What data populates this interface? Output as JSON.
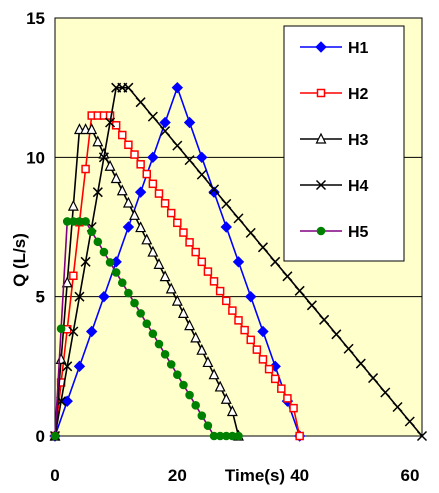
{
  "chart_data": {
    "type": "line",
    "title": "",
    "xlabel": "Time(s)",
    "ylabel": "Q (L/s)",
    "xlim": [
      0,
      60
    ],
    "ylim": [
      0,
      15
    ],
    "x_ticks": [
      "0",
      "20",
      "40",
      "60"
    ],
    "y_ticks": [
      "0",
      "5",
      "10",
      "15"
    ],
    "grid": "horizontal",
    "legend_position": "top-right",
    "plot_background": "#ffffcc",
    "series": [
      {
        "name": "H1",
        "color": "#0000ff",
        "marker": "diamond",
        "x": [
          0,
          2,
          4,
          6,
          8,
          10,
          12,
          14,
          16,
          18,
          20,
          22,
          24,
          26,
          28,
          30,
          32,
          34,
          36,
          38,
          40
        ],
        "y": [
          0,
          1.25,
          2.5,
          3.75,
          5.0,
          6.25,
          7.5,
          8.75,
          10.0,
          11.25,
          12.5,
          11.25,
          10.0,
          8.75,
          7.5,
          6.25,
          5.0,
          3.75,
          2.5,
          1.25,
          0
        ]
      },
      {
        "name": "H2",
        "color": "#ff0000",
        "marker": "square",
        "x": [
          0,
          1,
          2,
          3,
          4,
          5,
          6,
          7,
          8,
          9,
          10,
          11,
          12,
          13,
          14,
          15,
          16,
          17,
          18,
          19,
          20,
          21,
          22,
          23,
          24,
          25,
          26,
          27,
          28,
          29,
          30,
          31,
          32,
          33,
          34,
          35,
          36,
          37,
          38,
          39,
          40
        ],
        "y": [
          0,
          1.92,
          3.83,
          5.75,
          7.67,
          9.58,
          11.5,
          11.5,
          11.5,
          11.5,
          11.15,
          10.8,
          10.45,
          10.1,
          9.75,
          9.4,
          9.05,
          8.7,
          8.35,
          8.0,
          7.65,
          7.3,
          6.95,
          6.6,
          6.25,
          5.9,
          5.55,
          5.2,
          4.85,
          4.5,
          4.15,
          3.8,
          3.45,
          3.1,
          2.75,
          2.4,
          2.05,
          1.7,
          1.35,
          1.0,
          0
        ]
      },
      {
        "name": "H3",
        "color": "#000000",
        "marker": "triangle",
        "x": [
          0,
          1,
          2,
          3,
          4,
          5,
          6,
          7,
          8,
          9,
          10,
          11,
          12,
          13,
          14,
          15,
          16,
          17,
          18,
          19,
          20,
          21,
          22,
          23,
          24,
          25,
          26,
          27,
          28,
          29,
          30
        ],
        "y": [
          0,
          2.75,
          5.5,
          8.25,
          11.0,
          11.0,
          11.0,
          10.56,
          10.12,
          9.68,
          9.24,
          8.8,
          8.36,
          7.92,
          7.48,
          7.04,
          6.6,
          6.16,
          5.72,
          5.28,
          4.84,
          4.4,
          3.96,
          3.52,
          3.08,
          2.64,
          2.2,
          1.76,
          1.32,
          0.88,
          0
        ]
      },
      {
        "name": "H4",
        "color": "#000000",
        "marker": "x",
        "x": [
          0,
          1,
          2,
          3,
          4,
          5,
          6,
          7,
          8,
          9,
          10,
          11,
          12,
          14,
          16,
          18,
          20,
          22,
          24,
          26,
          28,
          30,
          32,
          34,
          36,
          38,
          40,
          42,
          44,
          46,
          48,
          50,
          52,
          54,
          56,
          58,
          60
        ],
        "y": [
          0,
          1.25,
          2.5,
          3.75,
          5.0,
          6.25,
          7.5,
          8.75,
          10.0,
          11.25,
          12.5,
          12.5,
          12.5,
          11.98,
          11.46,
          10.94,
          10.42,
          9.9,
          9.38,
          8.85,
          8.33,
          7.81,
          7.29,
          6.77,
          6.25,
          5.73,
          5.21,
          4.69,
          4.17,
          3.65,
          3.13,
          2.6,
          2.08,
          1.56,
          1.04,
          0.52,
          0
        ]
      },
      {
        "name": "H5",
        "color": "#800080",
        "marker_color": "#008000",
        "marker": "circle",
        "x": [
          0,
          1,
          2,
          3,
          4,
          5,
          6,
          7,
          8,
          9,
          10,
          11,
          12,
          13,
          14,
          15,
          16,
          17,
          18,
          19,
          20,
          21,
          22,
          23,
          24,
          25,
          26,
          27,
          28,
          29,
          30
        ],
        "y": [
          0,
          3.85,
          7.7,
          7.7,
          7.7,
          7.7,
          7.33,
          6.97,
          6.6,
          6.23,
          5.87,
          5.5,
          5.13,
          4.77,
          4.4,
          4.03,
          3.67,
          3.3,
          2.93,
          2.57,
          2.2,
          1.83,
          1.47,
          1.1,
          0.73,
          0.37,
          0,
          0,
          0,
          0,
          0
        ]
      }
    ]
  }
}
